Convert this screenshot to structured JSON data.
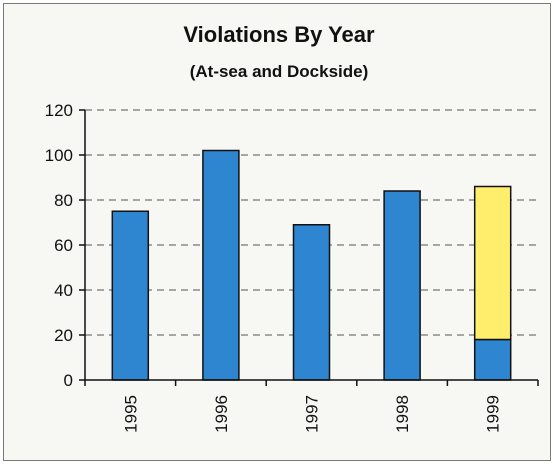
{
  "chart_data": {
    "type": "bar",
    "title": "Violations By Year",
    "subtitle": "(At-sea and Dockside)",
    "xlabel": "",
    "ylabel": "",
    "categories": [
      "1995",
      "1996",
      "1997",
      "1998",
      "1999"
    ],
    "series": [
      {
        "values": [
          75,
          102,
          69,
          84,
          18
        ],
        "color": "#2d86cf"
      },
      {
        "values": [
          0,
          0,
          0,
          0,
          68
        ],
        "color": "#ffee6b"
      }
    ],
    "ylim": [
      0,
      120
    ],
    "yticks": [
      0,
      20,
      40,
      60,
      80,
      100,
      120
    ],
    "grid": true,
    "grid_style": "dashed",
    "stacked": true,
    "legend": "none"
  }
}
